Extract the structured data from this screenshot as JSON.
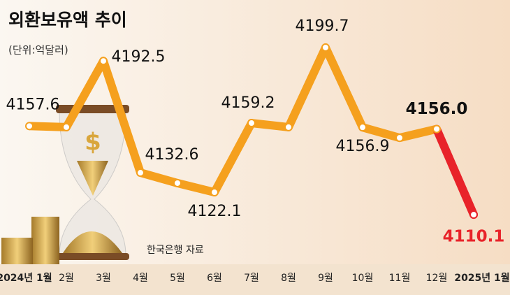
{
  "chart_data": {
    "type": "line",
    "title": "외환보유액 추이",
    "subtitle": "(단위:억달러)",
    "source": "한국은행 자료",
    "categories": [
      "2024년 1월",
      "2월",
      "3월",
      "4월",
      "5월",
      "6월",
      "7월",
      "8월",
      "9월",
      "10월",
      "11월",
      "12월",
      "2025년 1월"
    ],
    "series": [
      {
        "name": "외환보유액",
        "color": "#f5a01e",
        "values": [
          4157.6,
          4157,
          4192.5,
          4132.6,
          4127,
          4122.1,
          4159.2,
          4157,
          4199.7,
          4156.9,
          4151.3,
          4156.0,
          4110.1
        ],
        "value_labels": [
          "4157.6",
          null,
          "4192.5",
          "4132.6",
          null,
          "4122.1",
          "4159.2",
          null,
          "4199.7",
          "4156.9",
          null,
          "4156.0",
          "4110.1"
        ]
      }
    ],
    "highlight_color": "#e8232a",
    "ylim": [
      4100,
      4210
    ]
  }
}
